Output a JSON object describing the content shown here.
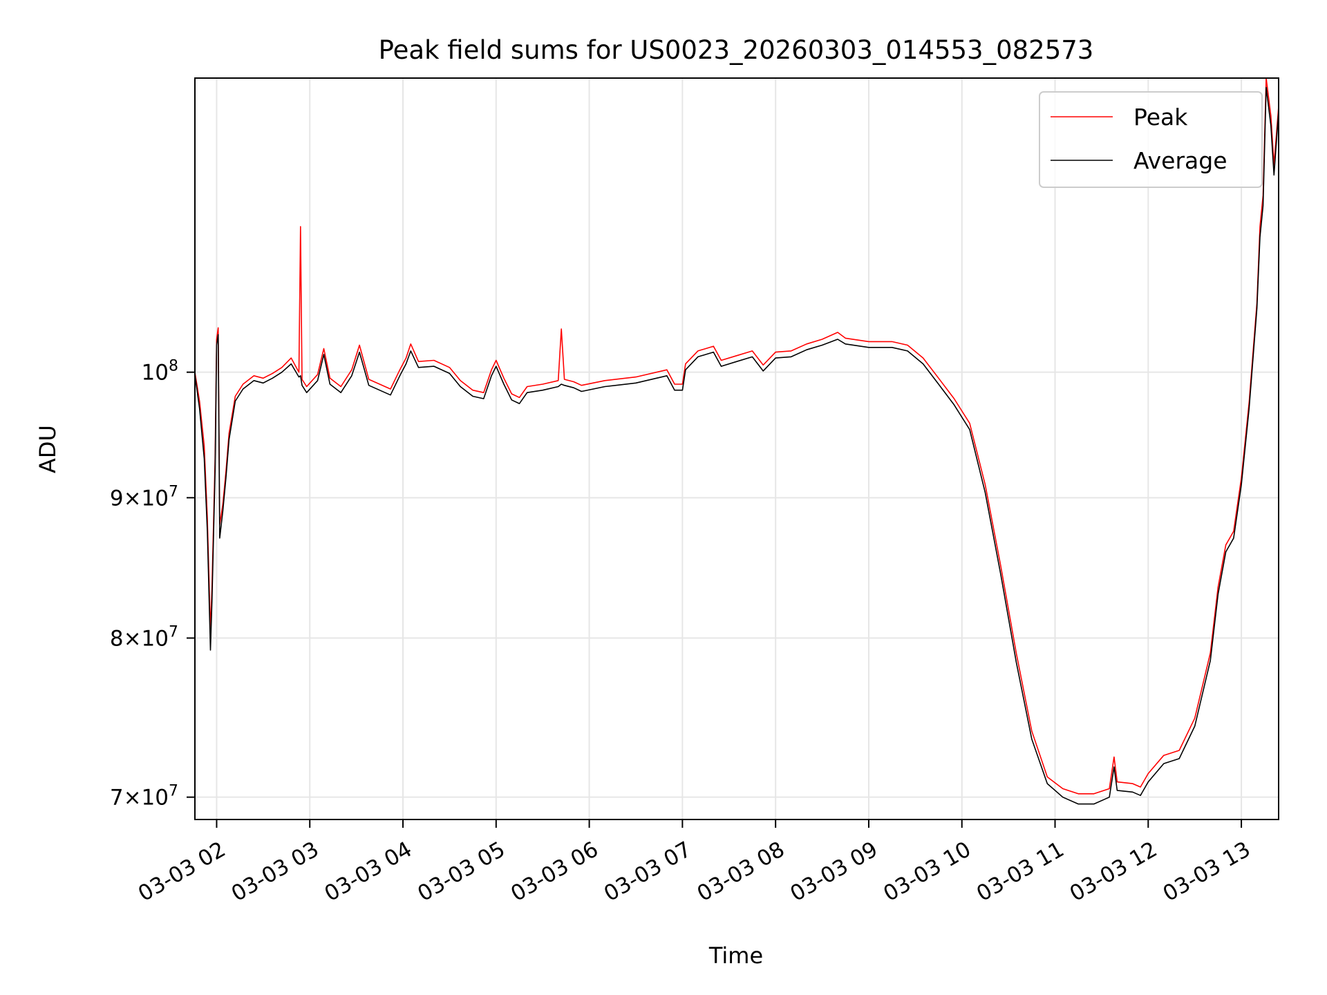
{
  "chart_data": {
    "type": "line",
    "title": "Peak field sums for US0023_20260303_014553_082573",
    "xlabel": "Time",
    "ylabel": "ADU",
    "y_scale": "log",
    "x_range": [
      "2026-03-03 01:46",
      "2026-03-03 13:24"
    ],
    "ylim": [
      68700000,
      128000000
    ],
    "grid": true,
    "legend_position": "top-right",
    "x_ticks": [
      {
        "t": "2026-03-03 02:00",
        "label": "03-03 02"
      },
      {
        "t": "2026-03-03 03:00",
        "label": "03-03 03"
      },
      {
        "t": "2026-03-03 04:00",
        "label": "03-03 04"
      },
      {
        "t": "2026-03-03 05:00",
        "label": "03-03 05"
      },
      {
        "t": "2026-03-03 06:00",
        "label": "03-03 06"
      },
      {
        "t": "2026-03-03 07:00",
        "label": "03-03 07"
      },
      {
        "t": "2026-03-03 08:00",
        "label": "03-03 08"
      },
      {
        "t": "2026-03-03 09:00",
        "label": "03-03 09"
      },
      {
        "t": "2026-03-03 10:00",
        "label": "03-03 10"
      },
      {
        "t": "2026-03-03 11:00",
        "label": "03-03 11"
      },
      {
        "t": "2026-03-03 12:00",
        "label": "03-03 12"
      },
      {
        "t": "2026-03-03 13:00",
        "label": "03-03 13"
      }
    ],
    "y_ticks": [
      {
        "value": 70000000,
        "base": "7",
        "exp": "7"
      },
      {
        "value": 80000000,
        "base": "8",
        "exp": "7"
      },
      {
        "value": 90000000,
        "base": "9",
        "exp": "7"
      },
      {
        "value": 100000000,
        "base": "",
        "exp": "8"
      }
    ],
    "series": [
      {
        "name": "Peak",
        "color": "#ff0000",
        "points": [
          [
            "2026-03-03 01:46",
            100000000
          ],
          [
            "2026-03-03 01:49",
            97600000
          ],
          [
            "2026-03-03 01:52",
            94000000
          ],
          [
            "2026-03-03 01:54",
            88500000
          ],
          [
            "2026-03-03 01:56",
            80500000
          ],
          [
            "2026-03-03 01:57",
            83500000
          ],
          [
            "2026-03-03 01:59",
            93000000
          ],
          [
            "2026-03-03 02:00",
            102800000
          ],
          [
            "2026-03-03 02:01",
            103800000
          ],
          [
            "2026-03-03 02:02",
            88000000
          ],
          [
            "2026-03-03 02:04",
            89500000
          ],
          [
            "2026-03-03 02:06",
            92000000
          ],
          [
            "2026-03-03 02:08",
            95000000
          ],
          [
            "2026-03-03 02:12",
            98000000
          ],
          [
            "2026-03-03 02:17",
            99000000
          ],
          [
            "2026-03-03 02:24",
            99700000
          ],
          [
            "2026-03-03 02:30",
            99500000
          ],
          [
            "2026-03-03 02:36",
            99900000
          ],
          [
            "2026-03-03 02:42",
            100400000
          ],
          [
            "2026-03-03 02:48",
            101200000
          ],
          [
            "2026-03-03 02:53",
            100000000
          ],
          [
            "2026-03-03 02:54",
            113000000
          ],
          [
            "2026-03-03 02:55",
            99400000
          ],
          [
            "2026-03-03 02:58",
            98800000
          ],
          [
            "2026-03-03 03:05",
            99800000
          ],
          [
            "2026-03-03 03:09",
            102000000
          ],
          [
            "2026-03-03 03:13",
            99500000
          ],
          [
            "2026-03-03 03:20",
            98800000
          ],
          [
            "2026-03-03 03:27",
            100200000
          ],
          [
            "2026-03-03 03:32",
            102300000
          ],
          [
            "2026-03-03 03:38",
            99400000
          ],
          [
            "2026-03-03 03:45",
            99000000
          ],
          [
            "2026-03-03 03:52",
            98600000
          ],
          [
            "2026-03-03 03:58",
            100200000
          ],
          [
            "2026-03-03 04:02",
            101200000
          ],
          [
            "2026-03-03 04:05",
            102400000
          ],
          [
            "2026-03-03 04:10",
            100900000
          ],
          [
            "2026-03-03 04:20",
            101000000
          ],
          [
            "2026-03-03 04:30",
            100400000
          ],
          [
            "2026-03-03 04:37",
            99300000
          ],
          [
            "2026-03-03 04:45",
            98500000
          ],
          [
            "2026-03-03 04:52",
            98300000
          ],
          [
            "2026-03-03 04:57",
            100200000
          ],
          [
            "2026-03-03 05:00",
            101000000
          ],
          [
            "2026-03-03 05:05",
            99500000
          ],
          [
            "2026-03-03 05:10",
            98200000
          ],
          [
            "2026-03-03 05:15",
            97900000
          ],
          [
            "2026-03-03 05:20",
            98800000
          ],
          [
            "2026-03-03 05:30",
            99000000
          ],
          [
            "2026-03-03 05:40",
            99300000
          ],
          [
            "2026-03-03 05:42",
            103700000
          ],
          [
            "2026-03-03 05:44",
            99400000
          ],
          [
            "2026-03-03 05:50",
            99200000
          ],
          [
            "2026-03-03 05:55",
            98900000
          ],
          [
            "2026-03-03 06:10",
            99300000
          ],
          [
            "2026-03-03 06:30",
            99600000
          ],
          [
            "2026-03-03 06:50",
            100200000
          ],
          [
            "2026-03-03 06:55",
            99000000
          ],
          [
            "2026-03-03 07:00",
            99000000
          ],
          [
            "2026-03-03 07:02",
            100700000
          ],
          [
            "2026-03-03 07:10",
            101800000
          ],
          [
            "2026-03-03 07:20",
            102200000
          ],
          [
            "2026-03-03 07:25",
            101000000
          ],
          [
            "2026-03-03 07:35",
            101400000
          ],
          [
            "2026-03-03 07:45",
            101800000
          ],
          [
            "2026-03-03 07:52",
            100600000
          ],
          [
            "2026-03-03 08:00",
            101700000
          ],
          [
            "2026-03-03 08:10",
            101800000
          ],
          [
            "2026-03-03 08:20",
            102400000
          ],
          [
            "2026-03-03 08:30",
            102800000
          ],
          [
            "2026-03-03 08:40",
            103400000
          ],
          [
            "2026-03-03 08:45",
            102900000
          ],
          [
            "2026-03-03 09:00",
            102600000
          ],
          [
            "2026-03-03 09:15",
            102600000
          ],
          [
            "2026-03-03 09:25",
            102300000
          ],
          [
            "2026-03-03 09:35",
            101200000
          ],
          [
            "2026-03-03 09:45",
            99500000
          ],
          [
            "2026-03-03 09:55",
            97800000
          ],
          [
            "2026-03-03 10:05",
            95800000
          ],
          [
            "2026-03-03 10:15",
            91000000
          ],
          [
            "2026-03-03 10:25",
            85000000
          ],
          [
            "2026-03-03 10:35",
            79000000
          ],
          [
            "2026-03-03 10:45",
            74000000
          ],
          [
            "2026-03-03 10:55",
            71200000
          ],
          [
            "2026-03-03 11:05",
            70500000
          ],
          [
            "2026-03-03 11:15",
            70200000
          ],
          [
            "2026-03-03 11:25",
            70200000
          ],
          [
            "2026-03-03 11:35",
            70500000
          ],
          [
            "2026-03-03 11:38",
            72400000
          ],
          [
            "2026-03-03 11:40",
            70900000
          ],
          [
            "2026-03-03 11:50",
            70800000
          ],
          [
            "2026-03-03 11:55",
            70600000
          ],
          [
            "2026-03-03 12:00",
            71400000
          ],
          [
            "2026-03-03 12:10",
            72500000
          ],
          [
            "2026-03-03 12:20",
            72800000
          ],
          [
            "2026-03-03 12:30",
            74800000
          ],
          [
            "2026-03-03 12:40",
            79000000
          ],
          [
            "2026-03-03 12:45",
            83500000
          ],
          [
            "2026-03-03 12:50",
            86500000
          ],
          [
            "2026-03-03 12:55",
            87500000
          ],
          [
            "2026-03-03 13:00",
            91500000
          ],
          [
            "2026-03-03 13:05",
            97500000
          ],
          [
            "2026-03-03 13:10",
            106000000
          ],
          [
            "2026-03-03 13:12",
            113000000
          ],
          [
            "2026-03-03 13:14",
            116000000
          ],
          [
            "2026-03-03 13:16",
            128000000
          ],
          [
            "2026-03-03 13:19",
            124000000
          ],
          [
            "2026-03-03 13:21",
            119000000
          ],
          [
            "2026-03-03 13:24",
            125000000
          ]
        ]
      },
      {
        "name": "Average",
        "color": "#000000",
        "points": [
          [
            "2026-03-03 01:46",
            99800000
          ],
          [
            "2026-03-03 01:49",
            97000000
          ],
          [
            "2026-03-03 01:52",
            93000000
          ],
          [
            "2026-03-03 01:54",
            87500000
          ],
          [
            "2026-03-03 01:56",
            79200000
          ],
          [
            "2026-03-03 01:57",
            82500000
          ],
          [
            "2026-03-03 01:59",
            92000000
          ],
          [
            "2026-03-03 02:00",
            102300000
          ],
          [
            "2026-03-03 02:01",
            103200000
          ],
          [
            "2026-03-03 02:02",
            87000000
          ],
          [
            "2026-03-03 02:04",
            89000000
          ],
          [
            "2026-03-03 02:06",
            91500000
          ],
          [
            "2026-03-03 02:08",
            94500000
          ],
          [
            "2026-03-03 02:12",
            97600000
          ],
          [
            "2026-03-03 02:17",
            98600000
          ],
          [
            "2026-03-03 02:24",
            99300000
          ],
          [
            "2026-03-03 02:30",
            99100000
          ],
          [
            "2026-03-03 02:36",
            99500000
          ],
          [
            "2026-03-03 02:42",
            100000000
          ],
          [
            "2026-03-03 02:48",
            100700000
          ],
          [
            "2026-03-03 02:53",
            99600000
          ],
          [
            "2026-03-03 02:54",
            99700000
          ],
          [
            "2026-03-03 02:55",
            98900000
          ],
          [
            "2026-03-03 02:58",
            98300000
          ],
          [
            "2026-03-03 03:05",
            99300000
          ],
          [
            "2026-03-03 03:09",
            101500000
          ],
          [
            "2026-03-03 03:13",
            99000000
          ],
          [
            "2026-03-03 03:20",
            98300000
          ],
          [
            "2026-03-03 03:27",
            99700000
          ],
          [
            "2026-03-03 03:32",
            101700000
          ],
          [
            "2026-03-03 03:38",
            98900000
          ],
          [
            "2026-03-03 03:45",
            98500000
          ],
          [
            "2026-03-03 03:52",
            98100000
          ],
          [
            "2026-03-03 03:58",
            99700000
          ],
          [
            "2026-03-03 04:02",
            100700000
          ],
          [
            "2026-03-03 04:05",
            101800000
          ],
          [
            "2026-03-03 04:10",
            100400000
          ],
          [
            "2026-03-03 04:20",
            100500000
          ],
          [
            "2026-03-03 04:30",
            99900000
          ],
          [
            "2026-03-03 04:37",
            98800000
          ],
          [
            "2026-03-03 04:45",
            98000000
          ],
          [
            "2026-03-03 04:52",
            97800000
          ],
          [
            "2026-03-03 04:57",
            99700000
          ],
          [
            "2026-03-03 05:00",
            100500000
          ],
          [
            "2026-03-03 05:05",
            99000000
          ],
          [
            "2026-03-03 05:10",
            97700000
          ],
          [
            "2026-03-03 05:15",
            97400000
          ],
          [
            "2026-03-03 05:20",
            98300000
          ],
          [
            "2026-03-03 05:30",
            98500000
          ],
          [
            "2026-03-03 05:40",
            98800000
          ],
          [
            "2026-03-03 05:42",
            99000000
          ],
          [
            "2026-03-03 05:44",
            98900000
          ],
          [
            "2026-03-03 05:50",
            98700000
          ],
          [
            "2026-03-03 05:55",
            98400000
          ],
          [
            "2026-03-03 06:10",
            98800000
          ],
          [
            "2026-03-03 06:30",
            99100000
          ],
          [
            "2026-03-03 06:50",
            99700000
          ],
          [
            "2026-03-03 06:55",
            98500000
          ],
          [
            "2026-03-03 07:00",
            98500000
          ],
          [
            "2026-03-03 07:02",
            100200000
          ],
          [
            "2026-03-03 07:10",
            101300000
          ],
          [
            "2026-03-03 07:20",
            101700000
          ],
          [
            "2026-03-03 07:25",
            100500000
          ],
          [
            "2026-03-03 07:35",
            100900000
          ],
          [
            "2026-03-03 07:45",
            101300000
          ],
          [
            "2026-03-03 07:52",
            100100000
          ],
          [
            "2026-03-03 08:00",
            101200000
          ],
          [
            "2026-03-03 08:10",
            101300000
          ],
          [
            "2026-03-03 08:20",
            101900000
          ],
          [
            "2026-03-03 08:30",
            102300000
          ],
          [
            "2026-03-03 08:40",
            102800000
          ],
          [
            "2026-03-03 08:45",
            102400000
          ],
          [
            "2026-03-03 09:00",
            102100000
          ],
          [
            "2026-03-03 09:15",
            102100000
          ],
          [
            "2026-03-03 09:25",
            101800000
          ],
          [
            "2026-03-03 09:35",
            100700000
          ],
          [
            "2026-03-03 09:45",
            99000000
          ],
          [
            "2026-03-03 09:55",
            97300000
          ],
          [
            "2026-03-03 10:05",
            95300000
          ],
          [
            "2026-03-03 10:15",
            90400000
          ],
          [
            "2026-03-03 10:25",
            84400000
          ],
          [
            "2026-03-03 10:35",
            78400000
          ],
          [
            "2026-03-03 10:45",
            73500000
          ],
          [
            "2026-03-03 10:55",
            70800000
          ],
          [
            "2026-03-03 11:05",
            70000000
          ],
          [
            "2026-03-03 11:15",
            69600000
          ],
          [
            "2026-03-03 11:25",
            69600000
          ],
          [
            "2026-03-03 11:35",
            70000000
          ],
          [
            "2026-03-03 11:38",
            71800000
          ],
          [
            "2026-03-03 11:40",
            70400000
          ],
          [
            "2026-03-03 11:50",
            70300000
          ],
          [
            "2026-03-03 11:55",
            70100000
          ],
          [
            "2026-03-03 12:00",
            70900000
          ],
          [
            "2026-03-03 12:10",
            72000000
          ],
          [
            "2026-03-03 12:20",
            72300000
          ],
          [
            "2026-03-03 12:30",
            74300000
          ],
          [
            "2026-03-03 12:40",
            78500000
          ],
          [
            "2026-03-03 12:45",
            83000000
          ],
          [
            "2026-03-03 12:50",
            86000000
          ],
          [
            "2026-03-03 12:55",
            87000000
          ],
          [
            "2026-03-03 13:00",
            91000000
          ],
          [
            "2026-03-03 13:05",
            97000000
          ],
          [
            "2026-03-03 13:10",
            105500000
          ],
          [
            "2026-03-03 13:12",
            112000000
          ],
          [
            "2026-03-03 13:14",
            115000000
          ],
          [
            "2026-03-03 13:16",
            127000000
          ],
          [
            "2026-03-03 13:19",
            123000000
          ],
          [
            "2026-03-03 13:21",
            118000000
          ],
          [
            "2026-03-03 13:24",
            124500000
          ]
        ]
      }
    ]
  }
}
